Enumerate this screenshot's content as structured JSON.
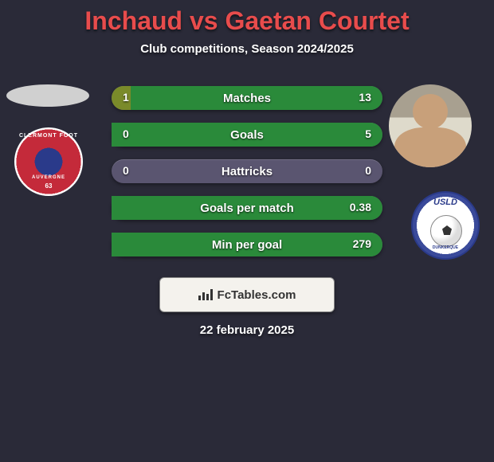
{
  "title": "Inchaud vs Gaetan Courtet",
  "subtitle": "Club competitions, Season 2024/2025",
  "date": "22 february 2025",
  "footer_brand": "FcTables.com",
  "colors": {
    "background": "#2a2a38",
    "title": "#e84c4c",
    "bar_bg": "#5a5570",
    "fill_left": "#7a8a2a",
    "fill_right": "#2a8a3a",
    "text": "#ffffff"
  },
  "stats": [
    {
      "label": "Matches",
      "left_val": "1",
      "right_val": "13",
      "left_pct": 7,
      "right_pct": 93
    },
    {
      "label": "Goals",
      "left_val": "0",
      "right_val": "5",
      "left_pct": 0,
      "right_pct": 100
    },
    {
      "label": "Hattricks",
      "left_val": "0",
      "right_val": "0",
      "left_pct": 0,
      "right_pct": 0
    },
    {
      "label": "Goals per match",
      "left_val": "",
      "right_val": "0.38",
      "left_pct": 0,
      "right_pct": 100
    },
    {
      "label": "Min per goal",
      "left_val": "",
      "right_val": "279",
      "left_pct": 0,
      "right_pct": 100
    }
  ],
  "badges": {
    "left": {
      "top": "CLERMONT FOOT",
      "mid": "AUVERGNE",
      "bot": "63"
    },
    "right": {
      "top": "USLD",
      "bot": "DUNKERQUE"
    }
  }
}
